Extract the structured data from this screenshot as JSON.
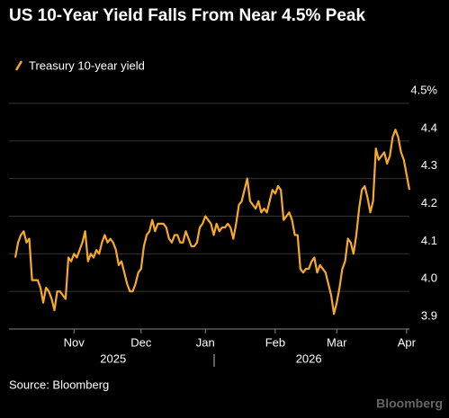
{
  "chart_data": {
    "type": "line",
    "title": "US 10-Year Yield Falls From Near 4.5% Peak",
    "source": "Source: Bloomberg",
    "watermark": "Bloomberg",
    "categories": [
      null,
      null,
      null,
      null,
      null,
      null,
      null,
      null,
      null,
      null,
      null,
      null,
      null,
      null,
      null,
      null,
      null,
      null,
      null,
      null,
      null,
      "Nov",
      null,
      null,
      null,
      null,
      null,
      null,
      null,
      null,
      null,
      null,
      null,
      null,
      null,
      null,
      null,
      null,
      null,
      null,
      null,
      null,
      null,
      null,
      null,
      "Dec",
      null,
      null,
      null,
      null,
      null,
      null,
      null,
      null,
      null,
      null,
      null,
      null,
      null,
      null,
      null,
      null,
      null,
      null,
      null,
      null,
      null,
      null,
      "Jan",
      null,
      null,
      null,
      null,
      null,
      null,
      null,
      null,
      null,
      null,
      null,
      null,
      null,
      null,
      null,
      null,
      null,
      null,
      null,
      null,
      null,
      null,
      null,
      null,
      "Feb",
      null,
      null,
      null,
      null,
      null,
      null,
      null,
      null,
      null,
      null,
      null,
      null,
      null,
      null,
      null,
      null,
      null,
      null,
      null,
      null,
      null,
      "Mar",
      null,
      null,
      null,
      null,
      null,
      null,
      null,
      null,
      null,
      null,
      null,
      null,
      null,
      null,
      null,
      null,
      null,
      null,
      null,
      null,
      null,
      null,
      null,
      null,
      "Apr",
      null
    ],
    "year_categories": [
      null,
      null,
      null,
      null,
      null,
      null,
      null,
      null,
      null,
      null,
      null,
      null,
      null,
      null,
      null,
      null,
      null,
      null,
      null,
      null,
      null,
      null,
      null,
      null,
      null,
      null,
      null,
      null,
      null,
      null,
      null,
      null,
      null,
      null,
      null,
      "2025",
      null,
      null,
      null,
      null,
      null,
      null,
      null,
      null,
      null,
      null,
      null,
      null,
      null,
      null,
      null,
      null,
      null,
      null,
      null,
      null,
      null,
      null,
      null,
      null,
      null,
      null,
      null,
      null,
      null,
      null,
      null,
      null,
      null,
      null,
      null,
      null,
      null,
      null,
      null,
      null,
      null,
      null,
      null,
      null,
      null,
      null,
      null,
      null,
      null,
      null,
      null,
      null,
      null,
      null,
      null,
      null,
      null,
      null,
      null,
      null,
      null,
      null,
      null,
      null,
      null,
      null,
      null,
      null,
      null,
      "2026",
      null,
      null,
      null,
      null,
      null,
      null,
      null,
      null,
      null,
      null,
      null,
      null,
      null,
      null,
      null,
      null,
      null,
      null,
      null,
      null,
      null,
      null,
      null,
      null,
      null,
      null,
      null,
      null,
      null,
      null,
      null,
      null,
      null,
      null,
      null
    ],
    "series": [
      {
        "name": "Treasury 10-year yield",
        "color": "#f7a928",
        "values": [
          4.09,
          4.13,
          4.15,
          4.16,
          4.13,
          4.14,
          4.03,
          4.03,
          4.03,
          4.01,
          3.97,
          4.01,
          4.0,
          3.98,
          3.95,
          4.0,
          4.0,
          3.99,
          3.98,
          4.09,
          4.08,
          4.1,
          4.09,
          4.11,
          4.13,
          4.16,
          4.08,
          4.1,
          4.09,
          4.11,
          4.1,
          4.13,
          4.15,
          4.13,
          4.14,
          4.13,
          4.11,
          4.07,
          4.08,
          4.05,
          4.02,
          4.0,
          4.0,
          4.02,
          4.05,
          4.06,
          4.12,
          4.15,
          4.16,
          4.19,
          4.16,
          4.18,
          4.18,
          4.18,
          4.17,
          4.14,
          4.13,
          4.15,
          4.15,
          4.13,
          4.13,
          4.16,
          4.14,
          4.12,
          4.12,
          4.13,
          4.17,
          4.18,
          4.2,
          4.19,
          4.18,
          4.15,
          4.18,
          4.16,
          4.17,
          4.17,
          4.18,
          4.17,
          4.14,
          4.18,
          4.23,
          4.24,
          4.27,
          4.3,
          4.24,
          4.23,
          4.22,
          4.24,
          4.21,
          4.22,
          4.21,
          4.24,
          4.27,
          4.26,
          4.28,
          4.27,
          4.19,
          4.2,
          4.21,
          4.19,
          4.15,
          4.15,
          4.06,
          4.05,
          4.06,
          4.06,
          4.08,
          4.09,
          4.05,
          4.07,
          4.06,
          4.05,
          4.02,
          3.99,
          3.94,
          3.97,
          4.01,
          4.06,
          4.08,
          4.14,
          4.13,
          4.1,
          4.15,
          4.22,
          4.27,
          4.28,
          4.25,
          4.21,
          4.24,
          4.38,
          4.35,
          4.36,
          4.37,
          4.34,
          4.36,
          4.41,
          4.43,
          4.41,
          4.37,
          4.35,
          4.31,
          4.27
        ]
      }
    ],
    "ylim": [
      3.9,
      4.5
    ],
    "yticks": [
      3.9,
      {
        "value": 4,
        "label": "4.0"
      },
      4.1,
      4.2,
      4.3,
      4.4,
      {
        "value": 4.5,
        "label": "4.5%"
      }
    ],
    "grid": true
  }
}
